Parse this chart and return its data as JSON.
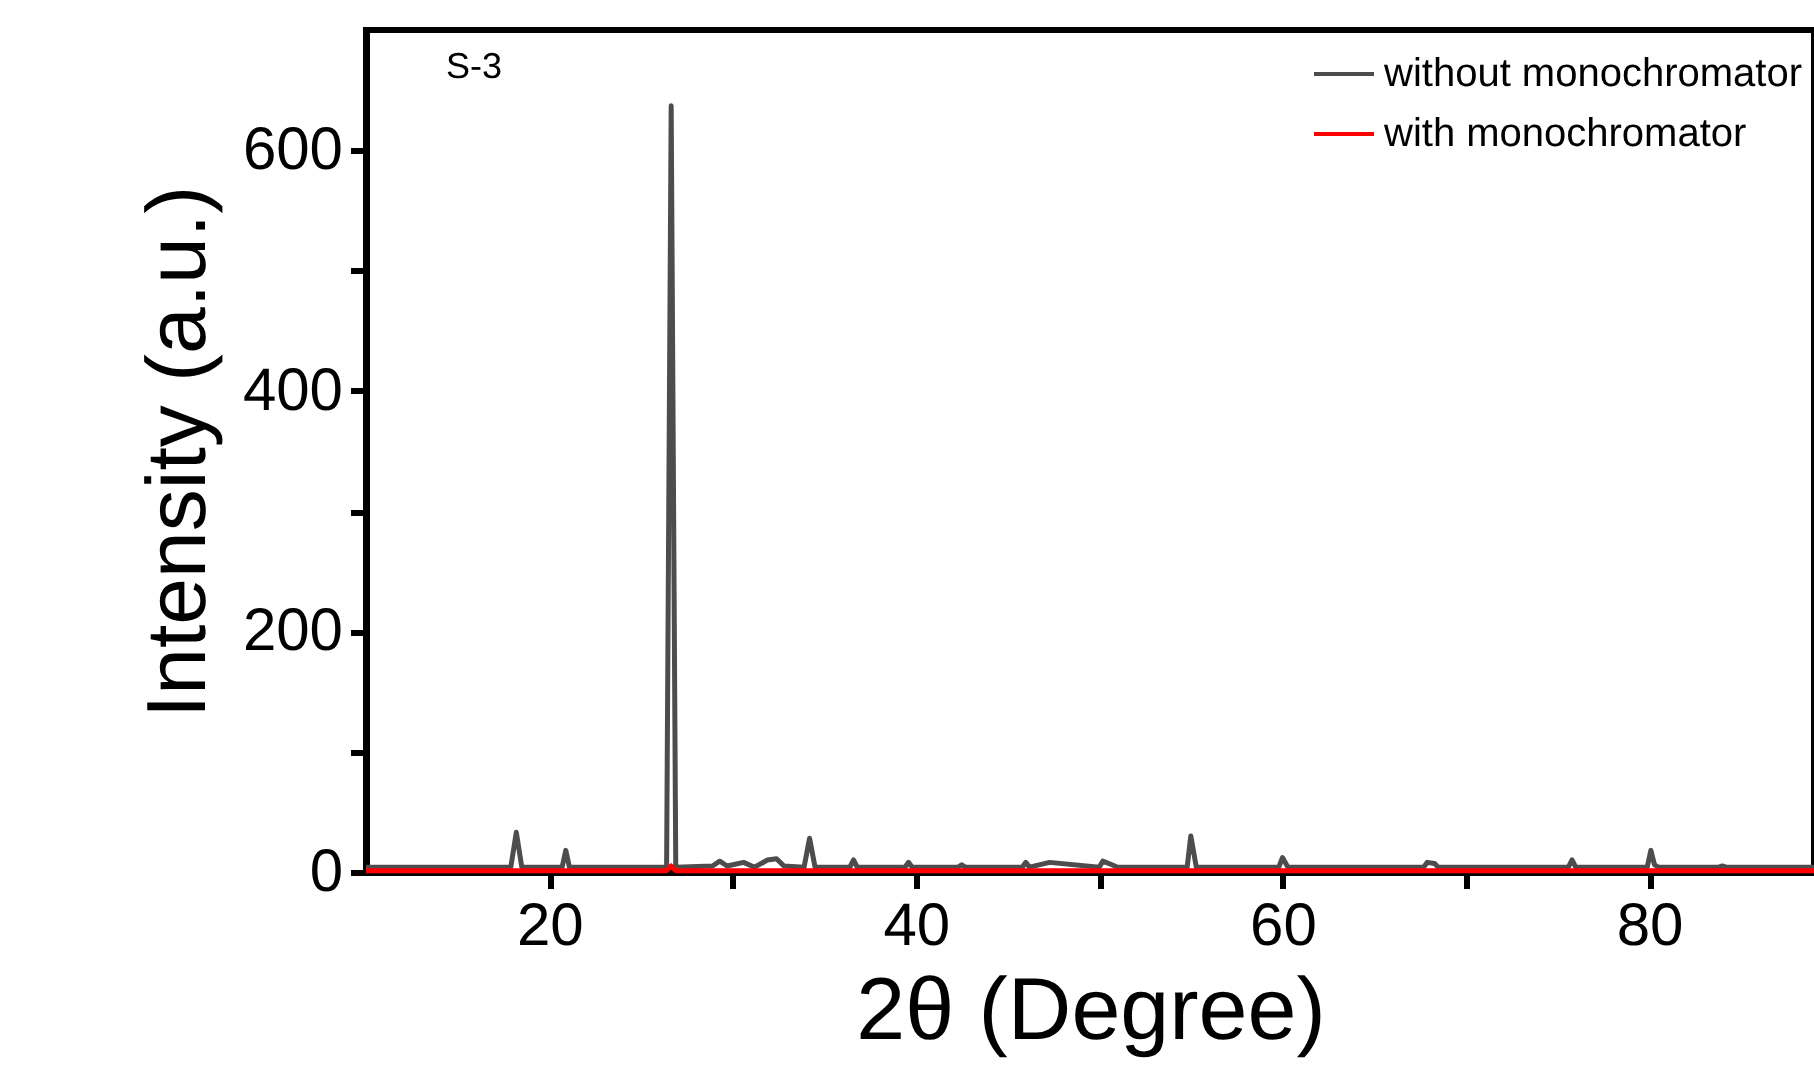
{
  "chart_data": {
    "type": "line",
    "xlabel": "2θ (Degree)",
    "ylabel": "Intensity (a.u.)",
    "xlim": [
      10,
      89
    ],
    "ylim": [
      0,
      700
    ],
    "xticks": [
      20,
      {
        "value": 30,
        "label": null
      },
      40,
      {
        "value": 50,
        "label": null
      },
      60,
      {
        "value": 70,
        "label": null
      },
      80
    ],
    "yticks": [
      0,
      {
        "value": 100,
        "label": null
      },
      200,
      {
        "value": 300,
        "label": null
      },
      400,
      {
        "value": 500,
        "label": null
      },
      600
    ],
    "legend": "top right",
    "annotations": [
      "S-3"
    ],
    "series": [
      {
        "name": "without monochromator",
        "color": "#4d4d4d",
        "x": [
          10,
          17.9,
          18.2,
          18.5,
          20.7,
          20.9,
          21.1,
          26.4,
          26.65,
          26.9,
          28.9,
          29.3,
          29.7,
          30.6,
          31.2,
          31.9,
          32.4,
          32.8,
          33.9,
          34.2,
          34.5,
          36.4,
          36.6,
          36.8,
          39.4,
          39.6,
          39.8,
          42.3,
          42.5,
          42.7,
          45.8,
          46,
          46.2,
          47.3,
          50,
          50.2,
          50.7,
          51,
          54.8,
          55,
          55.3,
          59.8,
          60,
          60.3,
          67.7,
          67.9,
          68.3,
          68.5,
          75.6,
          75.8,
          76,
          79.9,
          80.1,
          80.3,
          80.5,
          83.8,
          84,
          84.2,
          89
        ],
        "values": [
          4,
          4,
          33,
          4,
          4,
          18,
          4,
          4,
          637,
          4,
          5,
          9,
          5,
          8,
          4,
          10,
          11,
          5,
          4,
          28,
          4,
          4,
          10,
          4,
          4,
          8,
          4,
          4,
          6,
          4,
          4,
          8,
          4,
          8,
          4,
          9,
          6,
          4,
          4,
          30,
          4,
          4,
          12,
          4,
          4,
          8,
          7,
          4,
          4,
          10,
          4,
          4,
          18,
          6,
          4,
          4,
          5,
          4,
          4
        ]
      },
      {
        "name": "with monochromator",
        "color": "#ff0000",
        "x": [
          10,
          26.4,
          26.65,
          26.9,
          89
        ],
        "values": [
          1,
          1,
          5,
          1,
          1
        ]
      }
    ]
  }
}
